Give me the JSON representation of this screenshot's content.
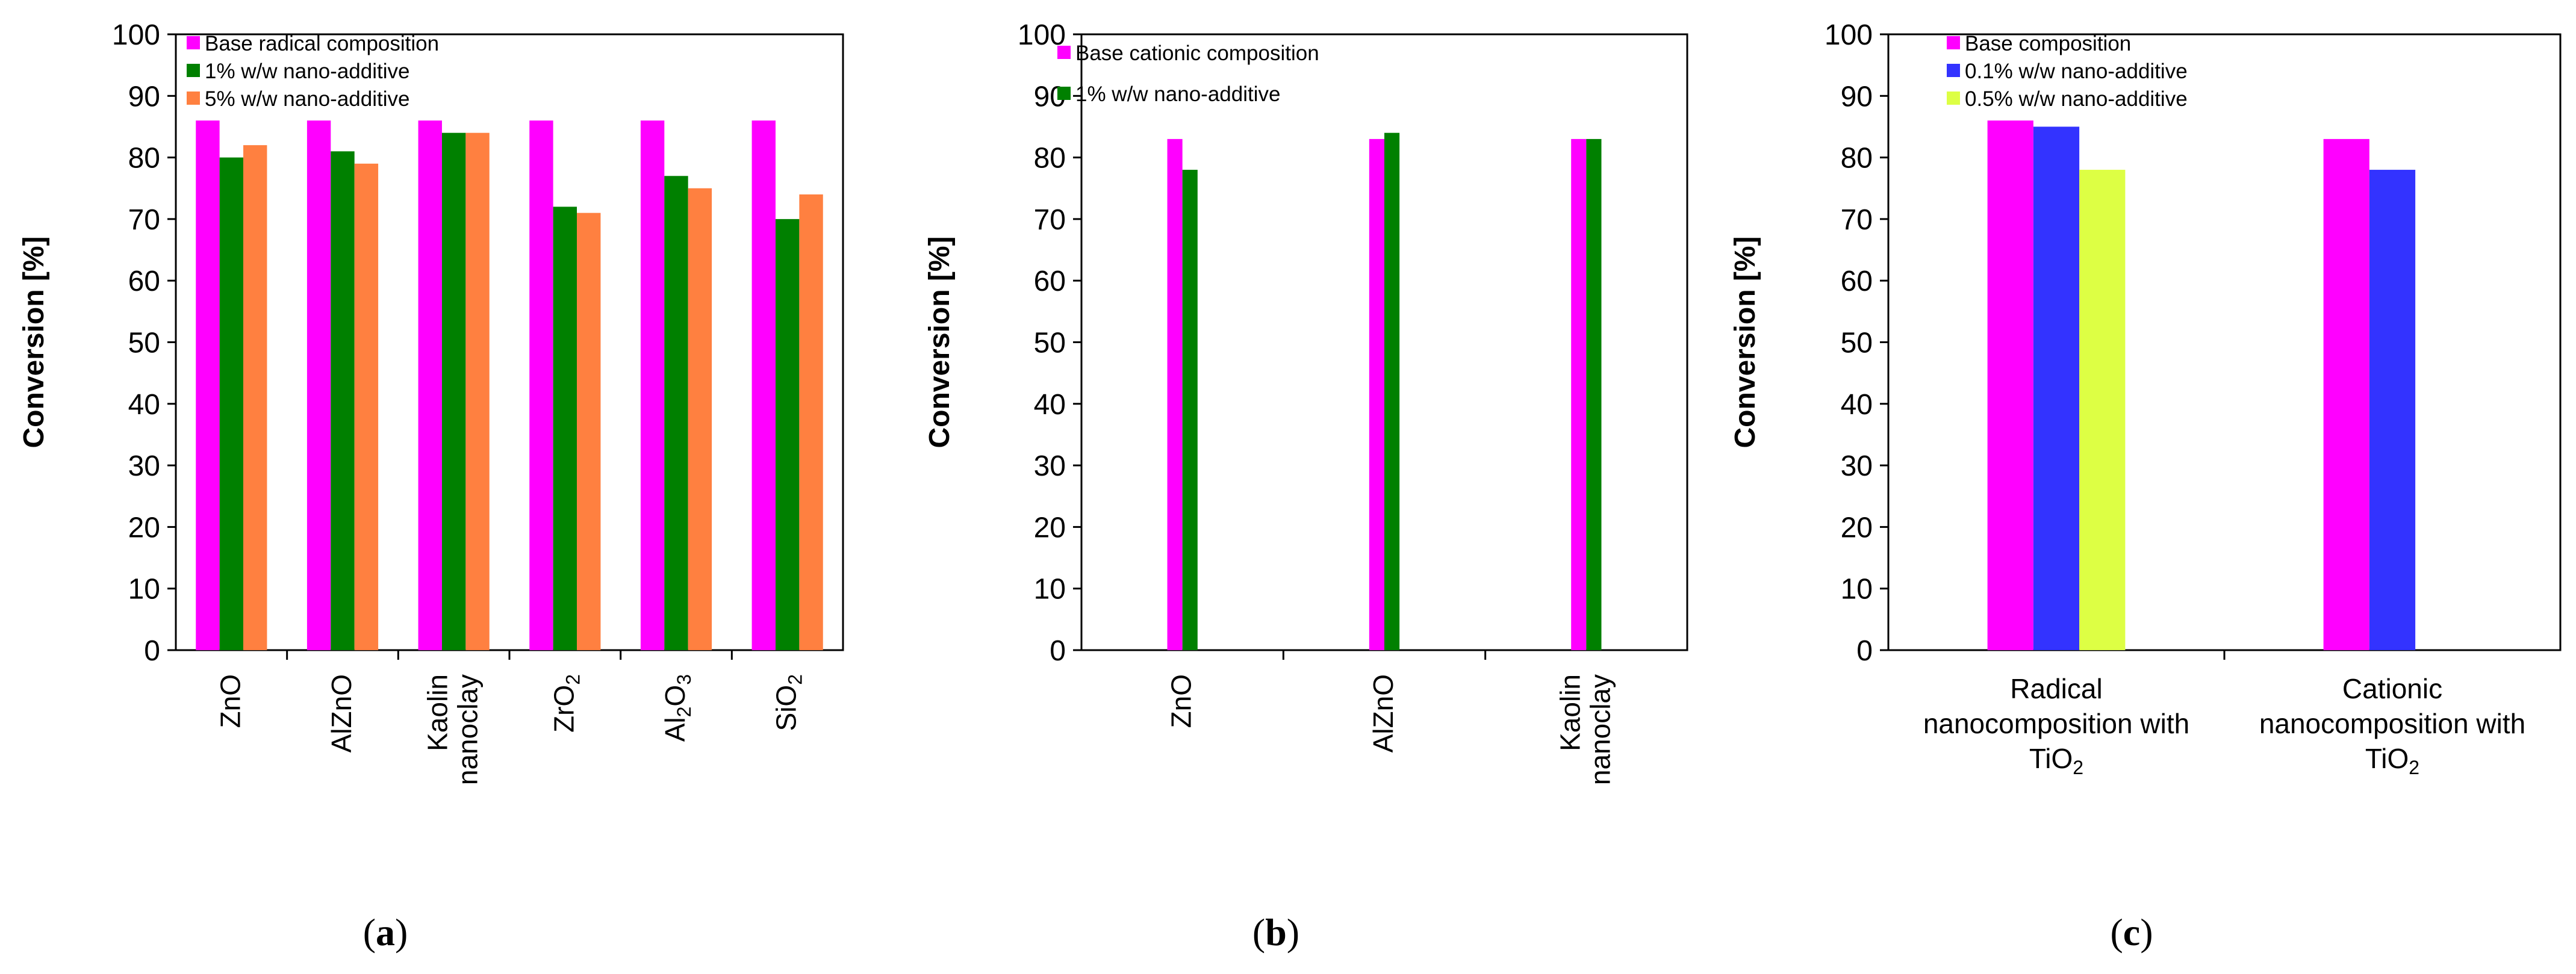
{
  "chart_data": [
    {
      "panel": "a",
      "type": "bar",
      "ylabel": "Conversion [%]",
      "xlabel": "",
      "ylim": [
        0,
        100
      ],
      "yticks": [
        0,
        10,
        20,
        30,
        40,
        50,
        60,
        70,
        80,
        90,
        100
      ],
      "grid": false,
      "legend_position": "top-left",
      "categories": [
        {
          "lines": [
            [
              {
                "t": "ZnO"
              }
            ]
          ]
        },
        {
          "lines": [
            [
              {
                "t": "AlZnO"
              }
            ]
          ]
        },
        {
          "lines": [
            [
              {
                "t": "Kaolin"
              }
            ],
            [
              {
                "t": "nanoclay"
              }
            ]
          ]
        },
        {
          "lines": [
            [
              {
                "t": "ZrO"
              },
              {
                "t": "2",
                "sub": true
              }
            ]
          ]
        },
        {
          "lines": [
            [
              {
                "t": "Al"
              },
              {
                "t": "2",
                "sub": true
              },
              {
                "t": "O"
              },
              {
                "t": "3",
                "sub": true
              }
            ]
          ]
        },
        {
          "lines": [
            [
              {
                "t": "SiO"
              },
              {
                "t": "2",
                "sub": true
              }
            ]
          ]
        }
      ],
      "series": [
        {
          "name": "Base radical composition",
          "color": "#FF00FF",
          "values": [
            86,
            86,
            86,
            86,
            86,
            86
          ]
        },
        {
          "name": "1% w/w nano-additive",
          "color": "#008000",
          "values": [
            80,
            81,
            84,
            72,
            77,
            70
          ]
        },
        {
          "name": "5% w/w nano-additive",
          "color": "#FF8040",
          "values": [
            82,
            79,
            84,
            71,
            75,
            74
          ]
        }
      ]
    },
    {
      "panel": "b",
      "type": "bar",
      "ylabel": "Conversion [%]",
      "xlabel": "",
      "ylim": [
        0,
        100
      ],
      "yticks": [
        0,
        10,
        20,
        30,
        40,
        50,
        60,
        70,
        80,
        90,
        100
      ],
      "grid": false,
      "legend_position": "top-left",
      "categories": [
        {
          "lines": [
            [
              {
                "t": "ZnO"
              }
            ]
          ]
        },
        {
          "lines": [
            [
              {
                "t": "AlZnO"
              }
            ]
          ]
        },
        {
          "lines": [
            [
              {
                "t": "Kaolin"
              }
            ],
            [
              {
                "t": "nanoclay"
              }
            ]
          ]
        }
      ],
      "series": [
        {
          "name": "Base cationic composition",
          "color": "#FF00FF",
          "values": [
            83,
            83,
            83
          ]
        },
        {
          "name": "1% w/w nano-additive",
          "color": "#008000",
          "values": [
            78,
            84,
            83
          ]
        }
      ]
    },
    {
      "panel": "c",
      "type": "bar",
      "ylabel": "Conversion [%]",
      "xlabel": "",
      "ylim": [
        0,
        100
      ],
      "yticks": [
        0,
        10,
        20,
        30,
        40,
        50,
        60,
        70,
        80,
        90,
        100
      ],
      "grid": false,
      "legend_position": "top-left",
      "categories": [
        {
          "lines": [
            [
              {
                "t": "Radical"
              }
            ],
            [
              {
                "t": "nanocomposition with"
              }
            ],
            [
              {
                "t": "TiO"
              },
              {
                "t": "2",
                "sub": true
              }
            ]
          ]
        },
        {
          "lines": [
            [
              {
                "t": "Cationic"
              }
            ],
            [
              {
                "t": "nanocomposition with"
              }
            ],
            [
              {
                "t": "TiO"
              },
              {
                "t": "2",
                "sub": true
              }
            ]
          ]
        }
      ],
      "series": [
        {
          "name": "Base composition",
          "color": "#FF00FF",
          "values": [
            86,
            83
          ]
        },
        {
          "name": "0.1% w/w nano-additive",
          "color": "#3333FF",
          "values": [
            85,
            78
          ]
        },
        {
          "name": "0.5% w/w nano-additive",
          "color": "#DDFF44",
          "values": [
            78,
            null
          ]
        }
      ]
    }
  ],
  "panel_labels": [
    "a",
    "b",
    "c"
  ]
}
